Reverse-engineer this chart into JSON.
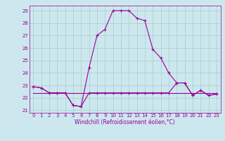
{
  "xlabel": "Windchill (Refroidissement éolien,°C)",
  "hours": [
    0,
    1,
    2,
    3,
    4,
    5,
    6,
    7,
    8,
    9,
    10,
    11,
    12,
    13,
    14,
    15,
    16,
    17,
    18,
    19,
    20,
    21,
    22,
    23
  ],
  "temp": [
    22.9,
    22.8,
    22.4,
    22.4,
    22.4,
    21.4,
    21.3,
    24.4,
    27.0,
    27.5,
    29.0,
    29.0,
    29.0,
    28.4,
    28.2,
    25.9,
    25.2,
    24.0,
    23.2,
    23.2,
    22.2,
    22.6,
    22.2,
    22.3
  ],
  "windchill": [
    22.9,
    22.8,
    22.4,
    22.4,
    22.4,
    21.4,
    21.3,
    22.4,
    22.4,
    22.4,
    22.4,
    22.4,
    22.4,
    22.4,
    22.4,
    22.4,
    22.4,
    22.4,
    23.2,
    23.2,
    22.2,
    22.6,
    22.2,
    22.3
  ],
  "flat_line": [
    22.4,
    22.4,
    22.4,
    22.4,
    22.4,
    22.4,
    22.4,
    22.4,
    22.4,
    22.4,
    22.4,
    22.4,
    22.4,
    22.4,
    22.4,
    22.4,
    22.4,
    22.4,
    22.4,
    22.4,
    22.4,
    22.4,
    22.4,
    22.4
  ],
  "line_color": "#990099",
  "bg_color": "#cce8ee",
  "grid_color": "#aacccc",
  "ylim": [
    20.8,
    29.4
  ],
  "yticks": [
    21,
    22,
    23,
    24,
    25,
    26,
    27,
    28,
    29
  ],
  "xticks": [
    0,
    1,
    2,
    3,
    4,
    5,
    6,
    7,
    8,
    9,
    10,
    11,
    12,
    13,
    14,
    15,
    16,
    17,
    18,
    19,
    20,
    21,
    22,
    23
  ],
  "marker": "+",
  "markersize": 3.5,
  "linewidth": 0.8,
  "tick_fontsize": 5.0,
  "xlabel_fontsize": 5.5
}
